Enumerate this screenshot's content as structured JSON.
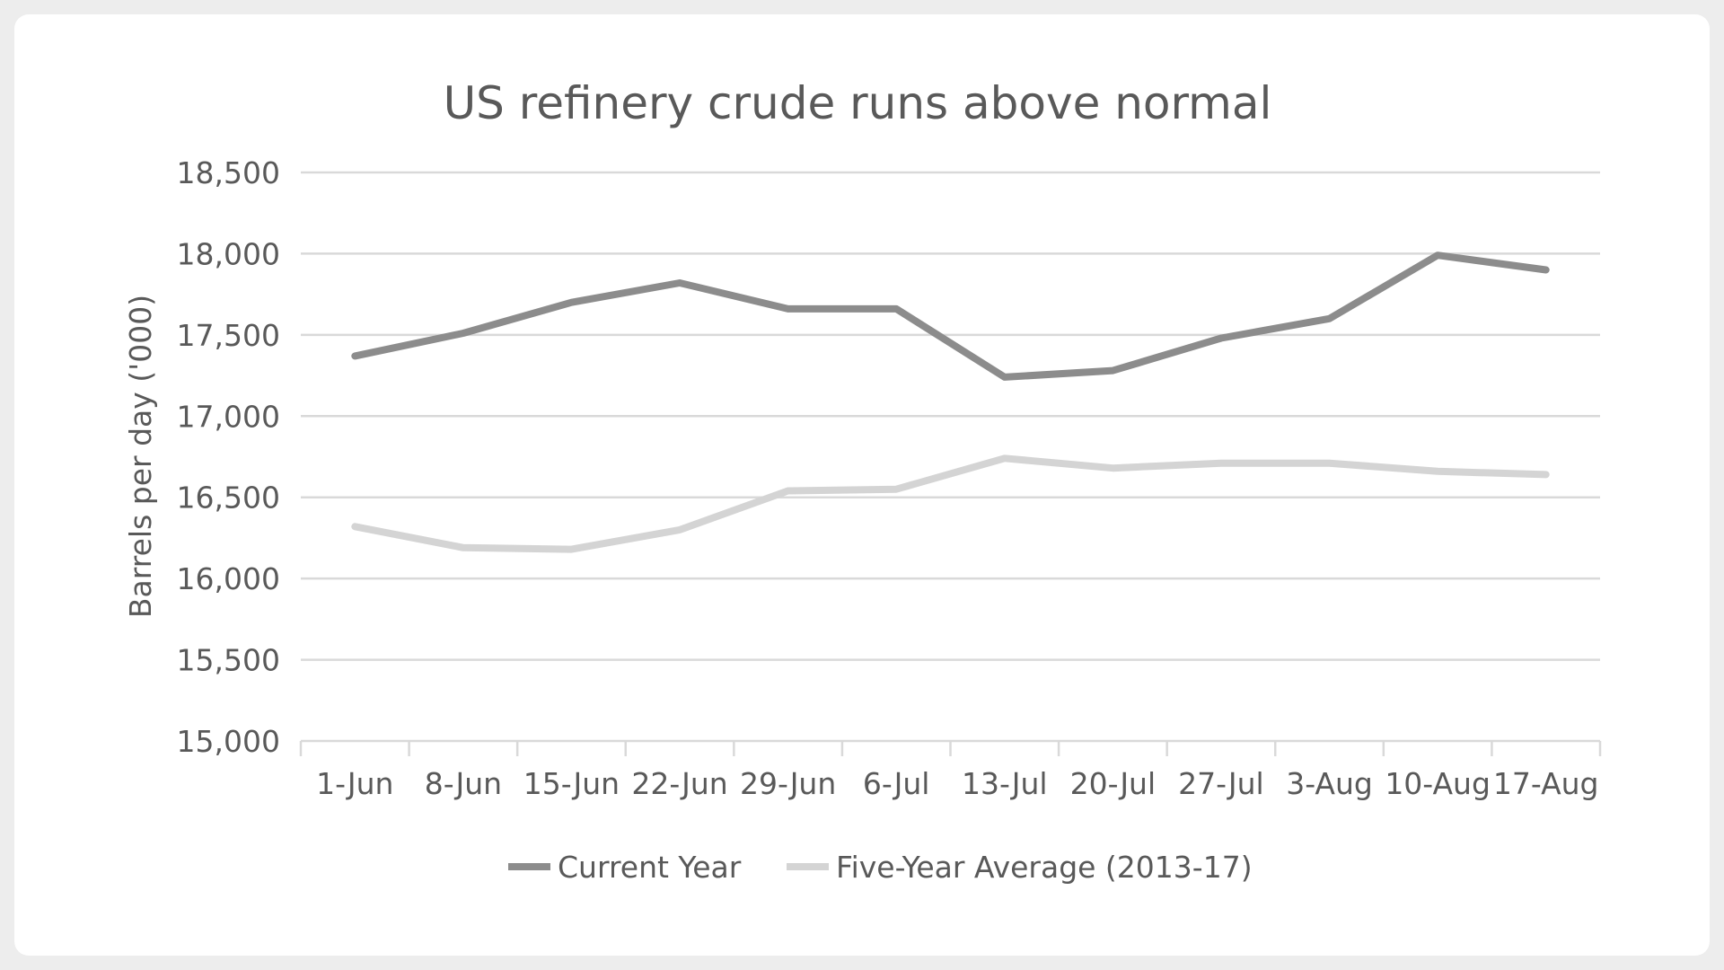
{
  "chart_data": {
    "type": "line",
    "title": "US refinery crude runs above normal",
    "xlabel": "",
    "ylabel": "Barrels per day ('000)",
    "categories": [
      "1-Jun",
      "8-Jun",
      "15-Jun",
      "22-Jun",
      "29-Jun",
      "6-Jul",
      "13-Jul",
      "20-Jul",
      "27-Jul",
      "3-Aug",
      "10-Aug",
      "17-Aug"
    ],
    "ylim": [
      15000,
      18500
    ],
    "yticks": [
      15000,
      15500,
      16000,
      16500,
      17000,
      17500,
      18000,
      18500
    ],
    "ytick_labels": [
      "15,000",
      "15,500",
      "16,000",
      "16,500",
      "17,000",
      "17,500",
      "18,000",
      "18,500"
    ],
    "grid": true,
    "legend_position": "bottom",
    "series": [
      {
        "name": "Current Year",
        "color": "#8c8c8c",
        "values": [
          17370,
          17510,
          17700,
          17820,
          17660,
          17660,
          17240,
          17280,
          17480,
          17600,
          17990,
          17900
        ]
      },
      {
        "name": "Five-Year Average (2013-17)",
        "color": "#d4d4d4",
        "values": [
          16320,
          16190,
          16180,
          16300,
          16540,
          16550,
          16740,
          16680,
          16710,
          16710,
          16660,
          16640
        ]
      }
    ]
  }
}
